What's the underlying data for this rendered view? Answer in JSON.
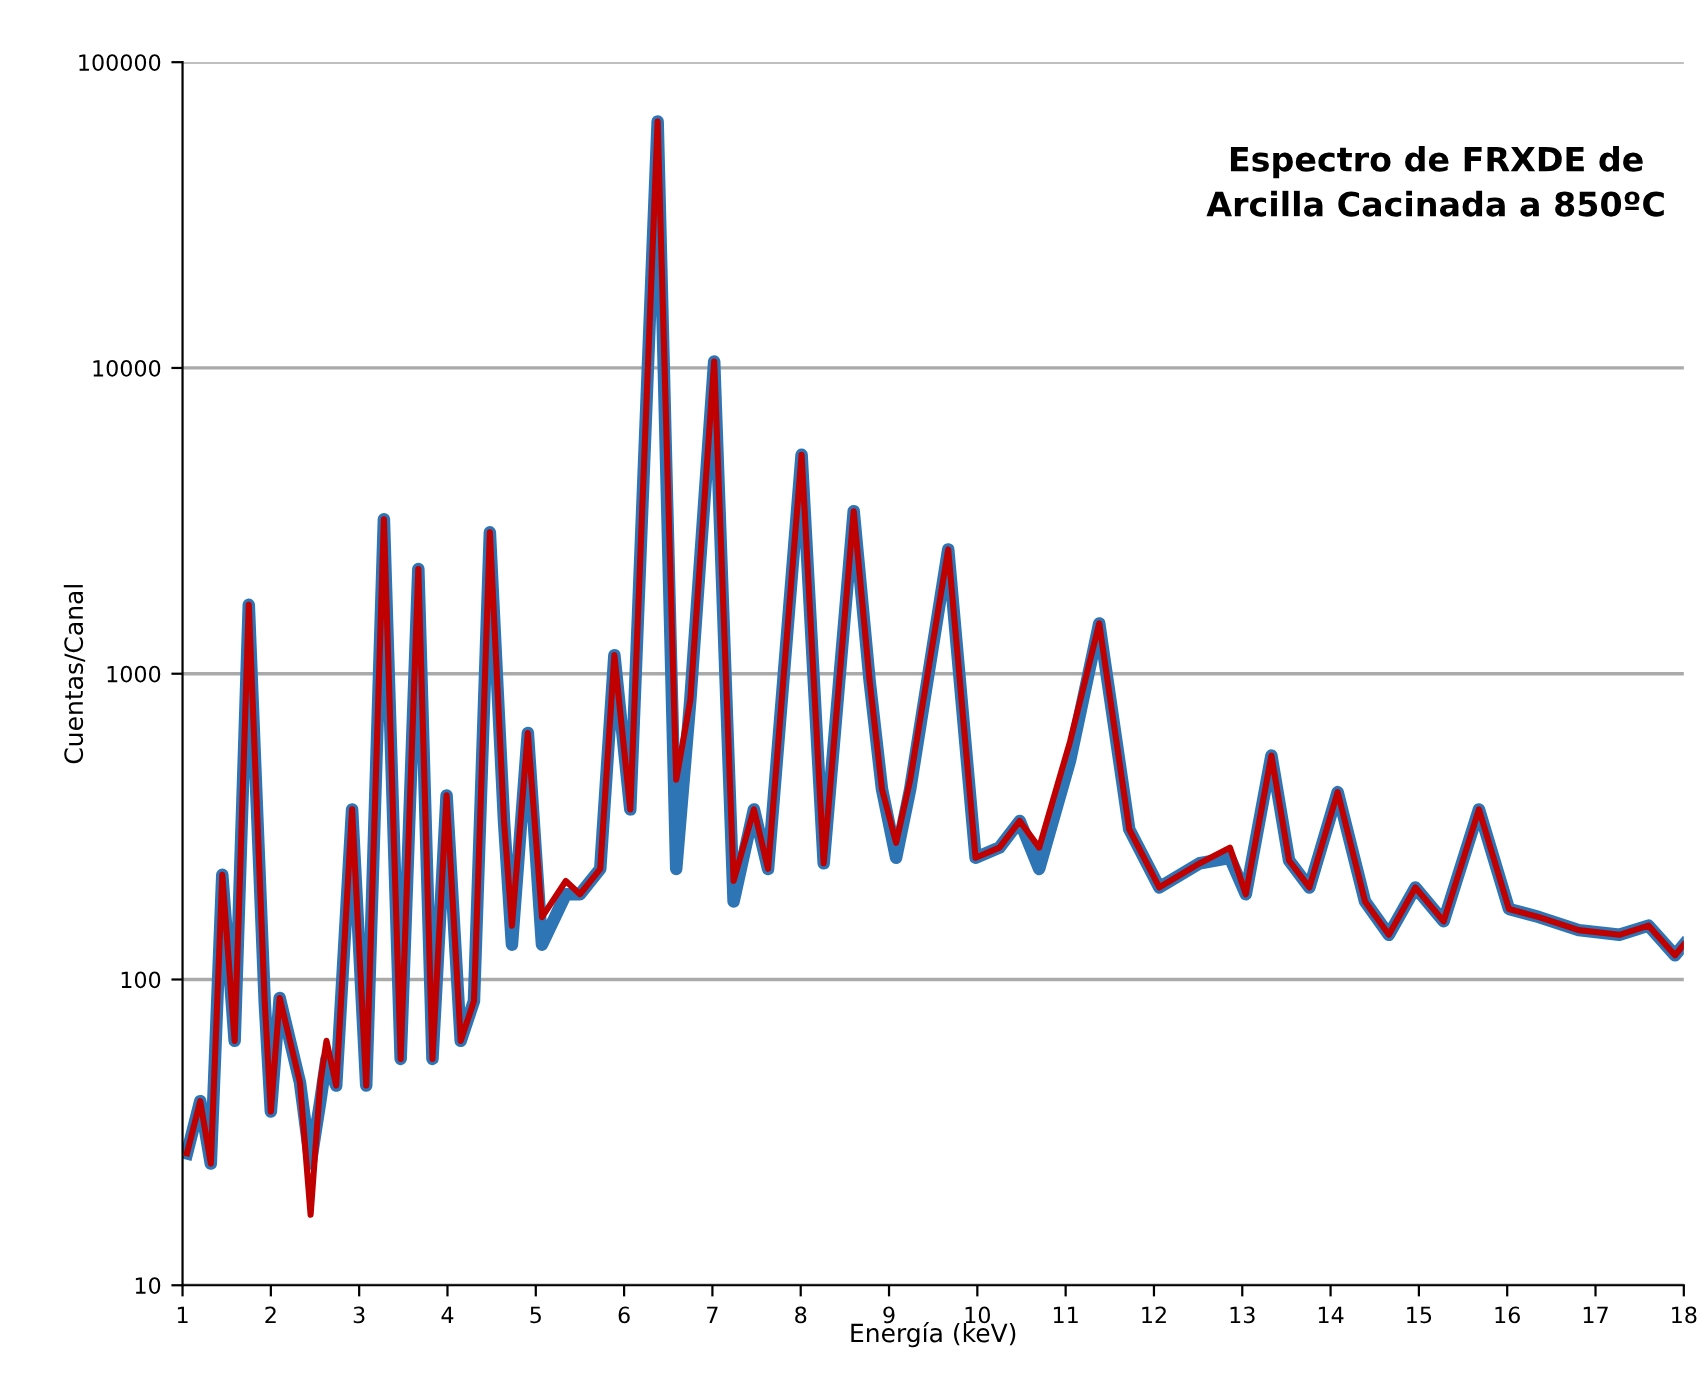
{
  "chart_data": {
    "type": "line",
    "title": "Espectro de FRXDE de\nArcilla Cacinada a 850ºC",
    "xlabel": "Energía (keV)",
    "ylabel": "Cuentas/Canal",
    "log": "y",
    "grid": "y",
    "legend": false,
    "marker": "none",
    "line_style": "solid",
    "xlim": [
      1,
      18
    ],
    "xticks": [
      1,
      2,
      3,
      4,
      5,
      6,
      7,
      8,
      9,
      10,
      11,
      12,
      13,
      14,
      15,
      16,
      17,
      18
    ],
    "ylim": [
      10,
      100000
    ],
    "yticks": [
      10,
      100,
      1000,
      10000,
      100000
    ],
    "x": [
      1.05,
      1.2,
      1.32,
      1.45,
      1.59,
      1.75,
      1.93,
      2.0,
      2.1,
      2.33,
      2.45,
      2.56,
      2.63,
      2.74,
      2.92,
      3.08,
      3.28,
      3.47,
      3.67,
      3.83,
      3.99,
      4.15,
      4.3,
      4.48,
      4.64,
      4.73,
      4.91,
      5.07,
      5.34,
      5.5,
      5.73,
      5.89,
      6.07,
      6.38,
      6.59,
      6.75,
      7.02,
      7.24,
      7.47,
      7.63,
      8.01,
      8.26,
      8.6,
      8.78,
      8.92,
      9.08,
      9.24,
      9.67,
      9.98,
      10.25,
      10.48,
      10.7,
      11.05,
      11.38,
      11.72,
      12.06,
      12.52,
      12.86,
      13.04,
      13.33,
      13.53,
      13.76,
      14.08,
      14.39,
      14.66,
      14.96,
      15.28,
      15.68,
      16.02,
      16.36,
      16.81,
      17.27,
      17.6,
      17.9,
      18
    ],
    "series": [
      {
        "color": "#2e75b6",
        "values": [
          27,
          40,
          25,
          220,
          63,
          1680,
          85,
          37,
          87,
          46,
          25,
          40,
          55,
          45,
          360,
          45,
          3200,
          55,
          2200,
          55,
          400,
          63,
          85,
          2900,
          330,
          130,
          640,
          130,
          190,
          190,
          230,
          1150,
          360,
          64000,
          230,
          820,
          10500,
          180,
          360,
          230,
          5200,
          240,
          3400,
          950,
          420,
          250,
          420,
          2550,
          250,
          270,
          330,
          230,
          520,
          1460,
          310,
          200,
          240,
          250,
          190,
          540,
          245,
          200,
          410,
          180,
          140,
          200,
          155,
          360,
          170,
          160,
          145,
          140,
          150,
          120,
          130
        ]
      },
      {
        "color": "#c00000",
        "values": [
          27,
          40,
          25,
          220,
          63,
          1680,
          85,
          37,
          87,
          46,
          17,
          46,
          63,
          45,
          360,
          45,
          3200,
          55,
          2200,
          55,
          400,
          63,
          85,
          2900,
          330,
          150,
          640,
          160,
          210,
          190,
          230,
          1150,
          360,
          64000,
          450,
          820,
          10500,
          210,
          360,
          230,
          5200,
          240,
          3400,
          950,
          420,
          280,
          450,
          2550,
          250,
          270,
          330,
          270,
          600,
          1460,
          310,
          200,
          240,
          270,
          190,
          540,
          245,
          200,
          410,
          180,
          140,
          200,
          155,
          360,
          170,
          160,
          145,
          140,
          150,
          120,
          130
        ]
      }
    ]
  }
}
